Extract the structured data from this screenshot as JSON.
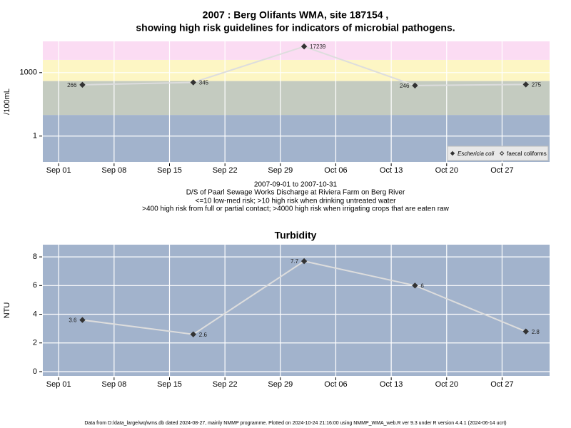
{
  "title": [
    "2007 : Berg Olifants WMA, site 187154 ,",
    "showing high risk guidelines for indicators of microbial pathogens."
  ],
  "notes": [
    "2007-09-01 to 2007-10-31",
    "D/S of Paarl Sewage Works Discharge at Riviera Farm on Berg River",
    "<=10 low-med risk; >10 high risk when drinking untreated water",
    ">400 high risk from full or partial contact; >4000 high risk when irrigating crops that are eaten raw"
  ],
  "footer": "Data from D:/data_large/wq/wms.db dated 2024-08-27, mainly NMMP programme. Plotted on 2024-10-24 21:16:00 using NMMP_WMA_web.R ver 9.3 under R version 4.4.1 (2024-06-14 ucrt)",
  "chart_data": [
    {
      "type": "line",
      "ylabel": "/100mL",
      "log_scale": true,
      "grid": true,
      "background": "#a2b3cc",
      "x": [
        "Sep 04",
        "Sep 18",
        "Oct 02",
        "Oct 16",
        "Oct 30"
      ],
      "xlim": [
        "Aug 30",
        "Nov 02"
      ],
      "xticks": [
        "Sep 01",
        "Sep 08",
        "Sep 15",
        "Sep 22",
        "Sep 29",
        "Oct 06",
        "Oct 13",
        "Oct 20",
        "Oct 27"
      ],
      "ylim": [
        0.06,
        30000
      ],
      "yticks": [
        1,
        1000
      ],
      "bands": {
        "breaks": [
          10,
          400,
          4000
        ],
        "colors": [
          "#a2b3cc",
          "#c4cbc0",
          "#fdf6c4",
          "#fbdcf3"
        ]
      },
      "legend": "bottom right",
      "series": [
        {
          "name": "Eschericia coli",
          "color": "#333333",
          "line_color": "#dddddd",
          "marker": "filled",
          "values": [
            266,
            345,
            17239,
            246,
            275
          ]
        },
        {
          "name": "faecal coliforms",
          "color": "#333333",
          "line_color": "#dddddd",
          "marker": "open",
          "values": [
            null,
            null,
            null,
            null,
            null
          ]
        }
      ]
    },
    {
      "type": "line",
      "title": "Turbidity",
      "ylabel": "NTU",
      "log_scale": false,
      "grid": true,
      "background": "#a2b3cc",
      "x": [
        "Sep 04",
        "Sep 18",
        "Oct 02",
        "Oct 16",
        "Oct 30"
      ],
      "xlim": [
        "Aug 30",
        "Nov 02"
      ],
      "xticks": [
        "Sep 01",
        "Sep 08",
        "Sep 15",
        "Sep 22",
        "Sep 29",
        "Oct 06",
        "Oct 13",
        "Oct 20",
        "Oct 27"
      ],
      "ylim": [
        -0.3,
        8.85
      ],
      "yticks": [
        0,
        2,
        4,
        6,
        8
      ],
      "series": [
        {
          "name": "Turbidity",
          "color": "#333333",
          "line_color": "#dddddd",
          "marker": "filled",
          "values": [
            3.6,
            2.6,
            7.7,
            6,
            2.8
          ]
        }
      ]
    }
  ]
}
